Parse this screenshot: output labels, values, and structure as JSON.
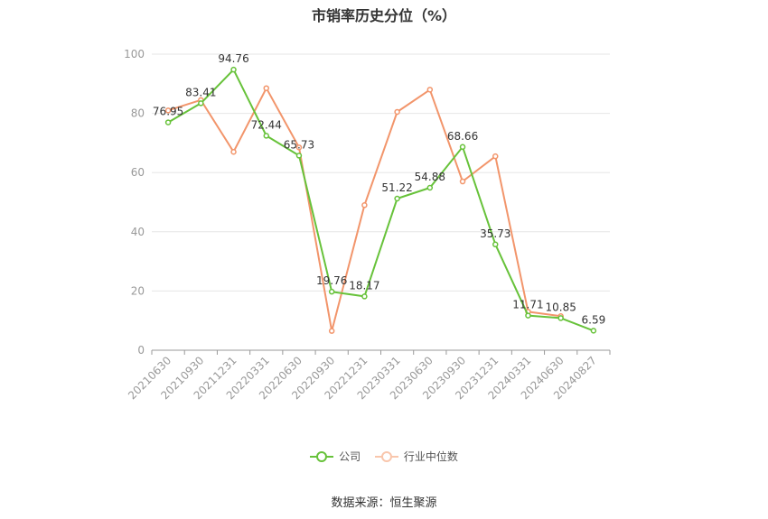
{
  "chart_data": {
    "type": "line",
    "title": "市销率历史分位（%）",
    "categories": [
      "20210630",
      "20210930",
      "20211231",
      "20220331",
      "20220630",
      "20220930",
      "20221231",
      "20230331",
      "20230630",
      "20230930",
      "20231231",
      "20240331",
      "20240630",
      "20240827"
    ],
    "series": [
      {
        "name": "公司",
        "color": "#67c23a",
        "values": [
          76.95,
          83.41,
          94.76,
          72.44,
          65.73,
          19.76,
          18.17,
          51.22,
          54.88,
          68.66,
          35.73,
          11.71,
          10.85,
          6.59
        ],
        "labels": [
          "76.95",
          "83.41",
          "94.76",
          "72.44",
          "65.73",
          "19.76",
          "18.17",
          "51.22",
          "54.88",
          "68.66",
          "35.73",
          "11.71",
          "10.85",
          "6.59"
        ]
      },
      {
        "name": "行业中位数",
        "color": "#f2956b",
        "values": [
          81.0,
          84.5,
          67.0,
          88.5,
          68.5,
          6.5,
          49.0,
          80.5,
          88.0,
          57.0,
          65.5,
          13.0,
          11.5,
          null
        ]
      }
    ],
    "ylim": [
      0,
      100
    ],
    "yticks": [
      "0",
      "20",
      "40",
      "60",
      "80",
      "100"
    ],
    "grid": true,
    "legend_position": "bottom"
  },
  "source": "数据来源：恒生聚源"
}
